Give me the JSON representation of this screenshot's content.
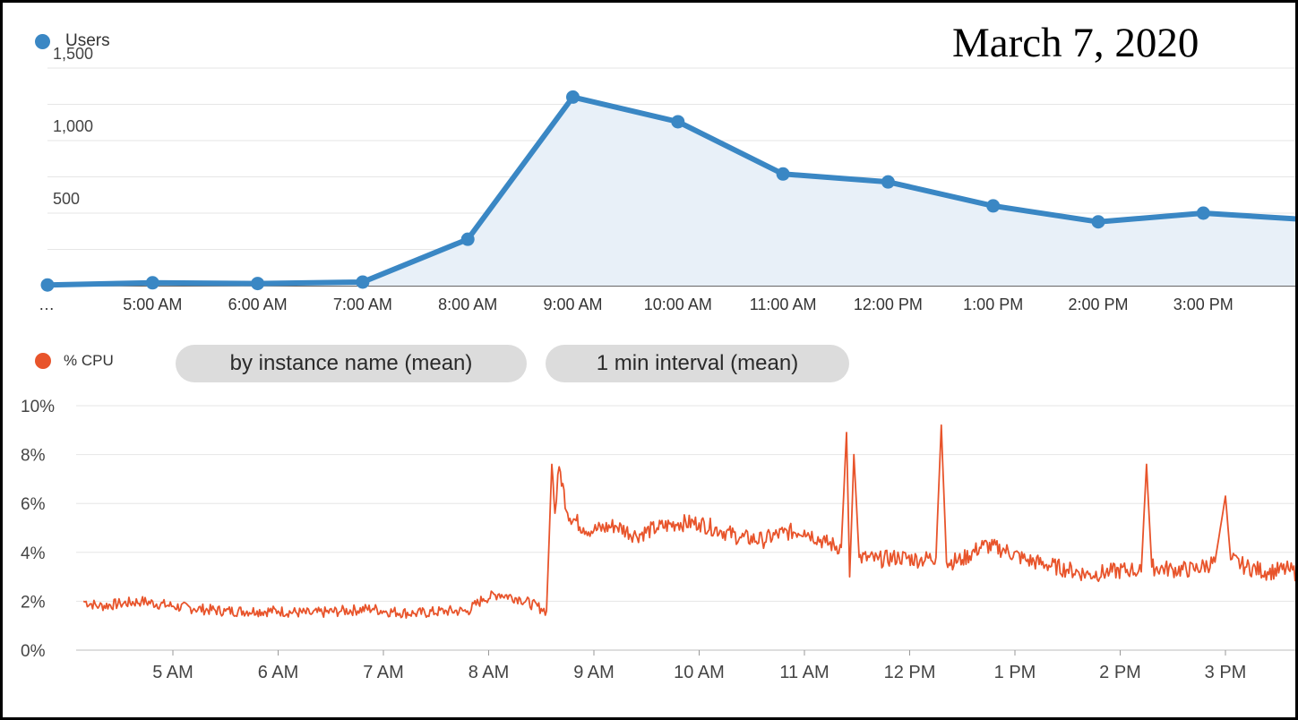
{
  "title": "March 7, 2020",
  "colors": {
    "users": "#3a87c4",
    "users_fill": "#e8f0f8",
    "cpu": "#e8542b",
    "grid": "#e6e6e6",
    "axis": "#333333"
  },
  "users_legend": "Users",
  "cpu_legend": "% CPU",
  "chips": [
    "by instance name (mean)",
    "1 min interval (mean)"
  ],
  "chart_data": [
    {
      "type": "area",
      "title": "",
      "series": [
        {
          "name": "Users",
          "values": [
            5,
            20,
            15,
            25,
            320,
            1300,
            1130,
            770,
            715,
            550,
            440,
            500,
            455
          ]
        }
      ],
      "categories": [
        "…",
        "5:00 AM",
        "6:00 AM",
        "7:00 AM",
        "8:00 AM",
        "9:00 AM",
        "10:00 AM",
        "11:00 AM",
        "12:00 PM",
        "1:00 PM",
        "2:00 PM",
        "3:00 PM",
        ""
      ],
      "y_ticks": [
        "500",
        "1,000",
        "1,500"
      ],
      "ylim": [
        0,
        1500
      ],
      "grid": true,
      "legend": "top-left"
    },
    {
      "type": "line",
      "title": "",
      "series": [
        {
          "name": "% CPU",
          "points": [
            [
              4.15,
              2.0
            ],
            [
              4.3,
              1.8
            ],
            [
              4.5,
              1.9
            ],
            [
              4.7,
              2.0
            ],
            [
              5.0,
              1.8
            ],
            [
              5.2,
              1.7
            ],
            [
              5.5,
              1.6
            ],
            [
              5.8,
              1.6
            ],
            [
              6.0,
              1.6
            ],
            [
              6.3,
              1.5
            ],
            [
              6.6,
              1.6
            ],
            [
              6.9,
              1.7
            ],
            [
              7.0,
              1.6
            ],
            [
              7.3,
              1.5
            ],
            [
              7.6,
              1.6
            ],
            [
              7.8,
              1.6
            ],
            [
              7.95,
              2.1
            ],
            [
              8.1,
              2.3
            ],
            [
              8.3,
              2.1
            ],
            [
              8.5,
              1.7
            ],
            [
              8.55,
              1.6
            ],
            [
              8.6,
              7.6
            ],
            [
              8.63,
              5.6
            ],
            [
              8.67,
              7.5
            ],
            [
              8.75,
              5.6
            ],
            [
              8.9,
              5.0
            ],
            [
              9.0,
              4.9
            ],
            [
              9.2,
              5.1
            ],
            [
              9.4,
              4.7
            ],
            [
              9.6,
              5.0
            ],
            [
              9.8,
              5.2
            ],
            [
              10.0,
              5.2
            ],
            [
              10.2,
              4.9
            ],
            [
              10.4,
              4.6
            ],
            [
              10.6,
              4.5
            ],
            [
              10.8,
              4.8
            ],
            [
              11.0,
              4.9
            ],
            [
              11.2,
              4.4
            ],
            [
              11.35,
              4.2
            ],
            [
              11.4,
              8.9
            ],
            [
              11.43,
              3.0
            ],
            [
              11.47,
              8.0
            ],
            [
              11.52,
              3.8
            ],
            [
              11.7,
              3.7
            ],
            [
              11.9,
              3.8
            ],
            [
              12.1,
              3.7
            ],
            [
              12.25,
              3.8
            ],
            [
              12.3,
              9.2
            ],
            [
              12.35,
              3.6
            ],
            [
              12.5,
              3.7
            ],
            [
              12.7,
              4.3
            ],
            [
              12.9,
              4.1
            ],
            [
              13.1,
              3.7
            ],
            [
              13.3,
              3.5
            ],
            [
              13.5,
              3.3
            ],
            [
              13.7,
              3.1
            ],
            [
              13.9,
              3.2
            ],
            [
              14.1,
              3.3
            ],
            [
              14.2,
              3.2
            ],
            [
              14.25,
              7.6
            ],
            [
              14.3,
              3.4
            ],
            [
              14.5,
              3.3
            ],
            [
              14.7,
              3.3
            ],
            [
              14.9,
              3.6
            ],
            [
              15.0,
              6.3
            ],
            [
              15.05,
              3.7
            ],
            [
              15.2,
              3.4
            ],
            [
              15.4,
              3.2
            ],
            [
              15.6,
              3.3
            ],
            [
              15.7,
              3.1
            ]
          ]
        }
      ],
      "x_ticks": [
        {
          "x": 5,
          "label": "5 AM"
        },
        {
          "x": 6,
          "label": "6 AM"
        },
        {
          "x": 7,
          "label": "7 AM"
        },
        {
          "x": 8,
          "label": "8 AM"
        },
        {
          "x": 9,
          "label": "9 AM"
        },
        {
          "x": 10,
          "label": "10 AM"
        },
        {
          "x": 11,
          "label": "11 AM"
        },
        {
          "x": 12,
          "label": "12 PM"
        },
        {
          "x": 13,
          "label": "1 PM"
        },
        {
          "x": 14,
          "label": "2 PM"
        },
        {
          "x": 15,
          "label": "3 PM"
        }
      ],
      "y_ticks": [
        {
          "value": 0,
          "label": "0%"
        },
        {
          "value": 2,
          "label": "2%"
        },
        {
          "value": 4,
          "label": "4%"
        },
        {
          "value": 6,
          "label": "6%"
        },
        {
          "value": 8,
          "label": "8%"
        },
        {
          "value": 10,
          "label": "10%"
        }
      ],
      "xlim": [
        4.15,
        15.7
      ],
      "ylim": [
        0,
        10
      ],
      "grid": true,
      "legend": "top-left"
    }
  ]
}
